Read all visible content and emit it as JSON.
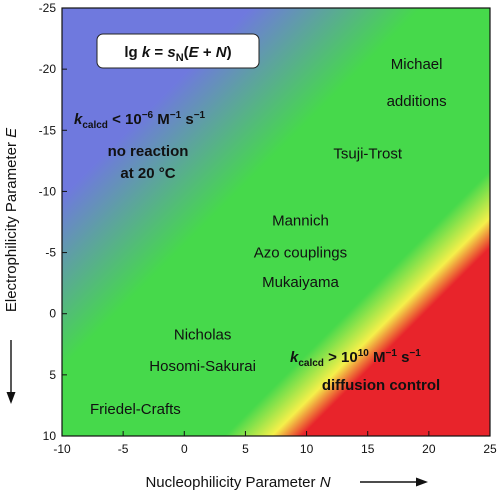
{
  "chart_data": {
    "type": "heatmap",
    "xlabel": "Nucleophilicity Parameter N",
    "ylabel": "Electrophilicity Parameter E",
    "xlim": [
      -10,
      25
    ],
    "ylim": [
      10,
      -25
    ],
    "x_ticks": [
      -10,
      -5,
      0,
      5,
      10,
      15,
      20,
      25
    ],
    "y_ticks": [
      -25,
      -20,
      -15,
      -10,
      -5,
      0,
      5,
      10
    ],
    "equation": {
      "prefix": "lg ",
      "k": "k",
      "eq": " = ",
      "s": "s",
      "sub": "N",
      "open": "(",
      "E": "E",
      "plus": " + ",
      "N": "N",
      "close": ")"
    },
    "regions": {
      "slow": {
        "k": "k",
        "sub": "calcd",
        "relation": " < 10",
        "exp": "−6",
        "unit1": " M",
        "unit1_exp": "−1",
        "unit2": " s",
        "unit2_exp": "−1",
        "line1": "no reaction",
        "line2": "at 20 °C",
        "color": "#6f79de"
      },
      "fast": {
        "k": "k",
        "sub": "calcd",
        "relation": " > 10",
        "exp": "10",
        "unit1": " M",
        "unit1_exp": "−1",
        "unit2": " s",
        "unit2_exp": "−1",
        "line1": "diffusion control",
        "color": "#e8242b"
      },
      "middle_color": "#46d94b",
      "border_color": "#f5f04a"
    },
    "annotations": [
      {
        "text": "Michael",
        "x": 19,
        "y": -20
      },
      {
        "text": "additions",
        "x": 19,
        "y": -17
      },
      {
        "text": "Tsuji-Trost",
        "x": 15,
        "y": -12.7
      },
      {
        "text": "Mannich",
        "x": 9.5,
        "y": -7.2
      },
      {
        "text": "Azo couplings",
        "x": 9.5,
        "y": -4.6
      },
      {
        "text": "Mukaiyama",
        "x": 9.5,
        "y": -2.2
      },
      {
        "text": "Nicholas",
        "x": 1.5,
        "y": 2.1
      },
      {
        "text": "Hosomi-Sakurai",
        "x": 1.5,
        "y": 4.7
      },
      {
        "text": "Friedel-Crafts",
        "x": -4,
        "y": 8.2
      }
    ]
  }
}
